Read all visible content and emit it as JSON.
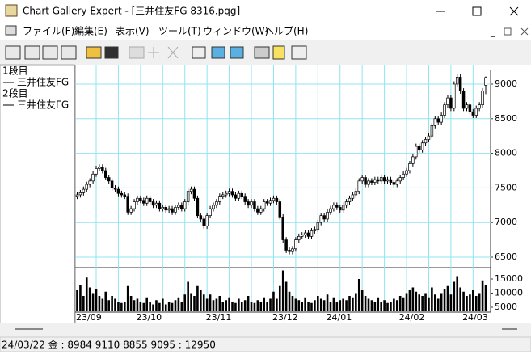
{
  "window": {
    "title": "Chart Gallery Expert - [三井住友FG 8316.pqg]"
  },
  "menu": [
    "ファイル(F)",
    "編集(E)",
    "表示(V)",
    "ツール(T)",
    "ウィンドウ(W)",
    "ヘルプ(H)"
  ],
  "panel": [
    "1段目",
    "三井住友FG",
    "2段目",
    "三井住友FG"
  ],
  "status": "24/03/22 金 : 8984 9110 8855 9095 : 12950",
  "chart_data": {
    "type": "candlestick",
    "categories": [
      "23/09",
      null,
      null,
      null,
      null,
      null,
      null,
      null,
      null,
      null,
      null,
      null,
      null,
      null,
      null,
      null,
      null,
      null,
      null,
      "23/10",
      null,
      null,
      null,
      null,
      null,
      null,
      null,
      null,
      null,
      null,
      null,
      null,
      null,
      null,
      null,
      null,
      null,
      null,
      null,
      null,
      null,
      "23/11",
      null,
      null,
      null,
      null,
      null,
      null,
      null,
      null,
      null,
      null,
      null,
      null,
      null,
      null,
      null,
      null,
      null,
      null,
      null,
      null,
      "23/12",
      null,
      null,
      null,
      null,
      null,
      null,
      null,
      null,
      null,
      null,
      null,
      null,
      null,
      null,
      null,
      null,
      "24/01",
      null,
      null,
      null,
      null,
      null,
      null,
      null,
      null,
      null,
      null,
      null,
      null,
      null,
      null,
      null,
      null,
      null,
      null,
      null,
      null,
      null,
      null,
      "24/02",
      null,
      null,
      null,
      null,
      null,
      null,
      null,
      null,
      null,
      null,
      null,
      null,
      null,
      null,
      null,
      null,
      null,
      null,
      null,
      "24/03",
      null,
      null,
      null,
      null,
      null,
      null,
      null
    ],
    "open": [
      7380,
      7400,
      7430,
      7480,
      7550,
      7600,
      7700,
      7780,
      7800,
      7750,
      7650,
      7600,
      7500,
      7480,
      7420,
      7400,
      7380,
      7150,
      7200,
      7300,
      7350,
      7320,
      7280,
      7350,
      7300,
      7250,
      7280,
      7200,
      7220,
      7180,
      7200,
      7150,
      7220,
      7250,
      7200,
      7300,
      7450,
      7480,
      7350,
      7100,
      7050,
      6950,
      7100,
      7200,
      7250,
      7300,
      7380,
      7400,
      7420,
      7450,
      7400,
      7350,
      7420,
      7380,
      7300,
      7250,
      7300,
      7200,
      7150,
      7200,
      7300,
      7280,
      7320,
      7350,
      7300,
      7080,
      6750,
      6600,
      6580,
      6620,
      6750,
      6800,
      6820,
      6850,
      6800,
      6880,
      6900,
      7000,
      7100,
      7050,
      7150,
      7200,
      7250,
      7220,
      7180,
      7250,
      7300,
      7350,
      7400,
      7450,
      7600,
      7650,
      7550,
      7600,
      7580,
      7620,
      7600,
      7650,
      7600,
      7620,
      7580,
      7550,
      7600,
      7650,
      7700,
      7750,
      7850,
      7950,
      8100,
      8050,
      8150,
      8200,
      8250,
      8400,
      8500,
      8450,
      8550,
      8700,
      8800,
      8650,
      9000,
      9100,
      8900,
      8650,
      8700,
      8600,
      8550,
      8650,
      8700,
      8984
    ],
    "high": [
      7440,
      7470,
      7520,
      7590,
      7640,
      7740,
      7820,
      7840,
      7840,
      7790,
      7690,
      7640,
      7540,
      7520,
      7460,
      7440,
      7420,
      7240,
      7340,
      7390,
      7390,
      7360,
      7390,
      7390,
      7340,
      7320,
      7320,
      7260,
      7260,
      7240,
      7240,
      7260,
      7290,
      7290,
      7340,
      7490,
      7520,
      7520,
      7390,
      7140,
      7090,
      7140,
      7240,
      7290,
      7340,
      7420,
      7440,
      7460,
      7490,
      7490,
      7440,
      7460,
      7460,
      7420,
      7340,
      7340,
      7340,
      7240,
      7240,
      7340,
      7340,
      7360,
      7390,
      7390,
      7340,
      7120,
      6790,
      6640,
      6660,
      6790,
      6840,
      6860,
      6890,
      6890,
      6920,
      6940,
      7040,
      7140,
      7140,
      7190,
      7240,
      7290,
      7290,
      7260,
      7290,
      7340,
      7390,
      7440,
      7490,
      7640,
      7690,
      7690,
      7640,
      7640,
      7660,
      7660,
      7690,
      7690,
      7660,
      7660,
      7620,
      7640,
      7690,
      7740,
      7790,
      7890,
      7990,
      8140,
      8140,
      8190,
      8240,
      8290,
      8440,
      8540,
      8540,
      8590,
      8740,
      8840,
      8840,
      9040,
      9140,
      9140,
      8940,
      8740,
      8740,
      8640,
      8690,
      8740,
      8940,
      9110
    ],
    "low": [
      7340,
      7360,
      7390,
      7440,
      7510,
      7560,
      7660,
      7740,
      7710,
      7610,
      7560,
      7460,
      7440,
      7380,
      7360,
      7340,
      7110,
      7110,
      7160,
      7260,
      7280,
      7240,
      7240,
      7260,
      7210,
      7210,
      7160,
      7160,
      7140,
      7140,
      7110,
      7110,
      7180,
      7160,
      7160,
      7260,
      7410,
      7310,
      7060,
      7010,
      6910,
      6910,
      7060,
      7160,
      7210,
      7260,
      7340,
      7360,
      7380,
      7360,
      7310,
      7310,
      7340,
      7260,
      7210,
      7210,
      7160,
      7110,
      7110,
      7160,
      7240,
      7240,
      7280,
      7260,
      7040,
      6710,
      6560,
      6540,
      6540,
      6580,
      6710,
      6760,
      6780,
      6760,
      6760,
      6840,
      6860,
      6960,
      7010,
      7010,
      7110,
      7160,
      7180,
      7140,
      7140,
      7210,
      7260,
      7310,
      7360,
      7410,
      7560,
      7510,
      7510,
      7540,
      7540,
      7560,
      7560,
      7560,
      7560,
      7540,
      7510,
      7510,
      7560,
      7610,
      7660,
      7710,
      7810,
      7910,
      8010,
      8010,
      8110,
      8160,
      8210,
      8360,
      8410,
      8410,
      8510,
      8660,
      8610,
      8610,
      8960,
      8860,
      8610,
      8610,
      8560,
      8510,
      8510,
      8610,
      8660,
      8855
    ],
    "close": [
      7400,
      7430,
      7480,
      7550,
      7600,
      7700,
      7780,
      7800,
      7750,
      7650,
      7600,
      7500,
      7480,
      7420,
      7400,
      7380,
      7150,
      7200,
      7300,
      7350,
      7320,
      7280,
      7350,
      7300,
      7250,
      7280,
      7200,
      7220,
      7180,
      7200,
      7150,
      7220,
      7250,
      7200,
      7300,
      7450,
      7480,
      7350,
      7100,
      7050,
      6950,
      7100,
      7200,
      7250,
      7300,
      7380,
      7400,
      7420,
      7450,
      7400,
      7350,
      7420,
      7380,
      7300,
      7250,
      7300,
      7200,
      7150,
      7200,
      7300,
      7280,
      7320,
      7350,
      7300,
      7080,
      6750,
      6600,
      6580,
      6620,
      6750,
      6800,
      6820,
      6850,
      6800,
      6880,
      6900,
      7000,
      7100,
      7050,
      7150,
      7200,
      7250,
      7220,
      7180,
      7250,
      7300,
      7350,
      7400,
      7450,
      7600,
      7650,
      7550,
      7600,
      7580,
      7620,
      7600,
      7650,
      7600,
      7620,
      7580,
      7550,
      7600,
      7650,
      7700,
      7750,
      7850,
      7950,
      8100,
      8050,
      8150,
      8200,
      8250,
      8400,
      8500,
      8450,
      8550,
      8700,
      8800,
      8650,
      9000,
      9100,
      8900,
      8650,
      8700,
      8600,
      8550,
      8650,
      8700,
      8900,
      9095
    ],
    "ylim": [
      6360,
      9210
    ],
    "yticks": [
      6500,
      7000,
      7500,
      8000,
      8500,
      9000
    ],
    "grid": true,
    "color": "#000000",
    "volume": {
      "values": [
        11000,
        13000,
        9000,
        15500,
        12000,
        10000,
        11500,
        9000,
        8000,
        10500,
        7500,
        9000,
        8000,
        7000,
        6500,
        7000,
        12500,
        9000,
        7500,
        8000,
        7000,
        6500,
        8500,
        7000,
        6000,
        7500,
        6500,
        8000,
        6000,
        7000,
        6500,
        7500,
        8500,
        7000,
        9500,
        14000,
        10000,
        9000,
        12500,
        11000,
        9500,
        8000,
        9500,
        7500,
        8000,
        9000,
        7000,
        7500,
        8500,
        7000,
        6500,
        8000,
        7000,
        7500,
        9000,
        7000,
        6500,
        7500,
        7000,
        8500,
        7000,
        8000,
        10500,
        8000,
        12500,
        18000,
        14000,
        10500,
        9000,
        8000,
        7500,
        7000,
        8500,
        7000,
        6500,
        7500,
        9000,
        8000,
        7500,
        9500,
        7000,
        8500,
        7000,
        7500,
        8000,
        7500,
        9000,
        8500,
        10000,
        15000,
        11000,
        9000,
        8000,
        7500,
        7000,
        8500,
        7000,
        7500,
        6500,
        7000,
        8000,
        7500,
        9000,
        8500,
        10000,
        11000,
        12000,
        10500,
        9500,
        9000,
        10000,
        8500,
        12000,
        9500,
        8000,
        10000,
        11500,
        12500,
        9500,
        14000,
        16000,
        12000,
        10500,
        9000,
        9500,
        11000,
        9000,
        10000,
        14500,
        12950
      ],
      "ylim": [
        3570,
        18710
      ],
      "yticks": [
        5000,
        10000,
        15000
      ],
      "color": "#000000"
    }
  }
}
